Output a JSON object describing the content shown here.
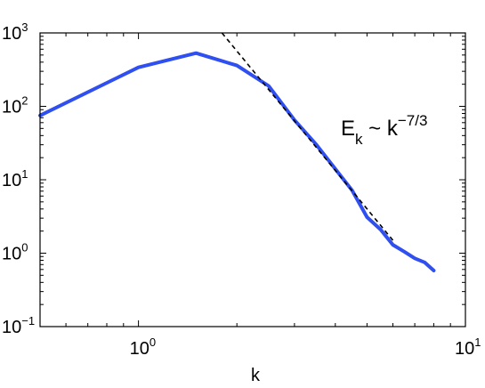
{
  "chart_data": {
    "type": "line",
    "xscale": "log",
    "yscale": "log",
    "xlim": [
      0.5,
      10
    ],
    "ylim": [
      0.1,
      1000
    ],
    "xlabel": "k",
    "ylabel": "",
    "xticks": [
      {
        "value": 1,
        "base": "10",
        "exp": "0"
      },
      {
        "value": 10,
        "base": "10",
        "exp": "1"
      }
    ],
    "yticks": [
      {
        "value": 0.1,
        "base": "10",
        "exp": "−1"
      },
      {
        "value": 1,
        "base": "10",
        "exp": "0"
      },
      {
        "value": 10,
        "base": "10",
        "exp": "1"
      },
      {
        "value": 100,
        "base": "10",
        "exp": "2"
      },
      {
        "value": 1000,
        "base": "10",
        "exp": "3"
      }
    ],
    "grid": false,
    "series": [
      {
        "color": "#2f4ff0",
        "style": "solid",
        "x": [
          0.5,
          1.0,
          1.5,
          2.0,
          2.5,
          3.0,
          3.5,
          4.0,
          4.5,
          5.0,
          5.5,
          6.0,
          6.5,
          7.0,
          7.5,
          8.0
        ],
        "y": [
          75,
          340,
          530,
          360,
          190,
          65,
          30,
          14,
          7.2,
          3.1,
          2.1,
          1.3,
          1.05,
          0.85,
          0.75,
          0.58
        ]
      },
      {
        "color": "#000000",
        "style": "dashed",
        "x": [
          1.8,
          6.0
        ],
        "y": [
          1000,
          1.5
        ]
      }
    ],
    "annotation": {
      "main": "E",
      "sub": "k",
      "rest": " ~ k",
      "sup": "−7/3"
    }
  }
}
